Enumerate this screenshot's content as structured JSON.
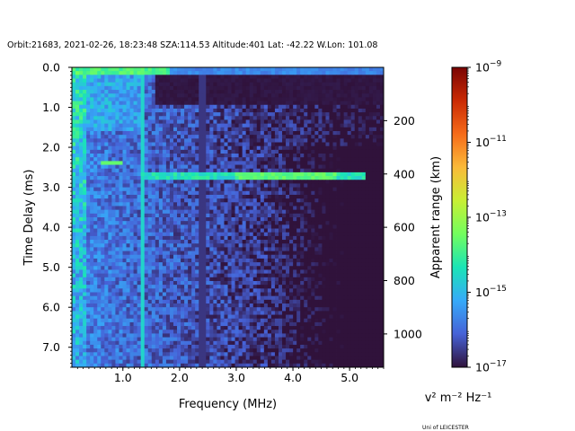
{
  "chart_data": {
    "type": "heatmap",
    "title": "Orbit:21683, 2021-02-26, 18:23:48 SZA:114.53 Altitude:401 Lat: -42.22 W.Lon: 101.08",
    "xlabel": "Frequency (MHz)",
    "ylabel": "Time Delay (ms)",
    "y2label": "Apparent range (km)",
    "xlim": [
      0.1,
      5.6
    ],
    "ylim": [
      7.5,
      0.0
    ],
    "y2lim": [
      1125,
      0
    ],
    "x_ticks": [
      1.0,
      2.0,
      3.0,
      4.0,
      5.0
    ],
    "x_ticklabels": [
      "1.0",
      "2.0",
      "3.0",
      "4.0",
      "5.0"
    ],
    "y_ticks": [
      0.0,
      1.0,
      2.0,
      3.0,
      4.0,
      5.0,
      6.0,
      7.0
    ],
    "y_ticklabels": [
      "0.0",
      "1.0",
      "2.0",
      "3.0",
      "4.0",
      "5.0",
      "6.0",
      "7.0"
    ],
    "y2_ticks": [
      200,
      400,
      600,
      800,
      1000
    ],
    "y2_ticklabels": [
      "200",
      "400",
      "600",
      "800",
      "1000"
    ],
    "colorbar": {
      "scale": "log",
      "range": [
        1e-17,
        1e-09
      ],
      "ticks": [
        -17,
        -15,
        -13,
        -11,
        -9
      ],
      "label": "v² m⁻² Hz⁻¹",
      "colormap": [
        "#30123b",
        "#4662d7",
        "#36aaf9",
        "#1ae4b6",
        "#72fe5e",
        "#c8ef34",
        "#faba39",
        "#f66b19",
        "#ca2a04",
        "#7a0403"
      ]
    },
    "features": {
      "low_frequency_band_mhz": [
        0.1,
        0.35
      ],
      "dark_vertical_line_mhz": 2.4,
      "bright_vertical_line_mhz": 1.35,
      "horizontal_echo_delay_ms": 2.75,
      "horizontal_echo_extent_mhz": [
        1.3,
        5.3
      ]
    },
    "grid": false
  },
  "footer": {
    "credit": "Uni of LEICESTER"
  }
}
